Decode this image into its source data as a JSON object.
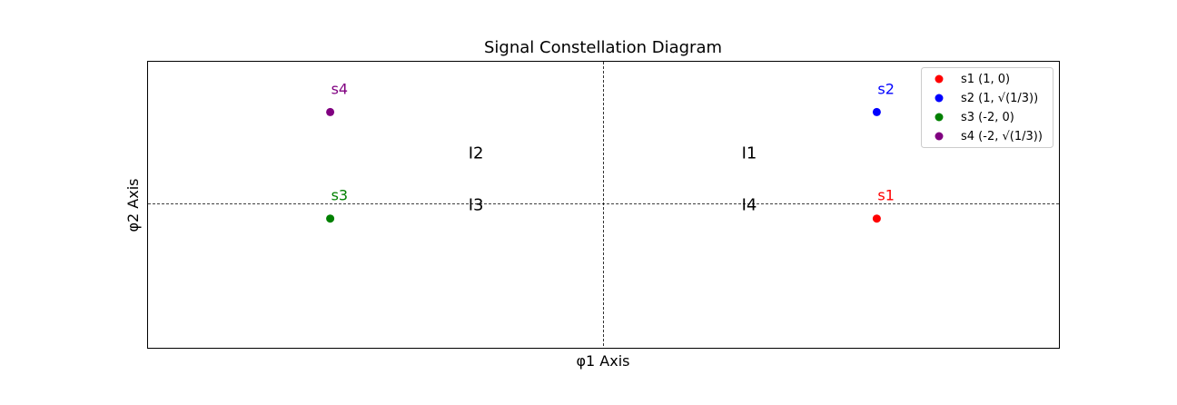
{
  "chart_data": {
    "type": "scatter",
    "title": "Signal Constellation Diagram",
    "xlabel": "φ1 Axis",
    "ylabel": "φ2 Axis",
    "xlim": [
      -3,
      2
    ],
    "ylim": [
      -0.7,
      0.85
    ],
    "grid": false,
    "axis_ticks": false,
    "reference_lines": {
      "x": -0.5,
      "y": 0.08
    },
    "legend_position": "top-right",
    "series": [
      {
        "name": "s1 (1, 0)",
        "label": "s1",
        "color": "#ff0000",
        "x": 1,
        "y": 0
      },
      {
        "name": "s2 (1, √(1/3))",
        "label": "s2",
        "color": "#0000ff",
        "x": 1,
        "y": 0.57735
      },
      {
        "name": "s3 (-2, 0)",
        "label": "s3",
        "color": "#008000",
        "x": -2,
        "y": 0
      },
      {
        "name": "s4 (-2, √(1/3))",
        "label": "s4",
        "color": "#800080",
        "x": -2,
        "y": 0.57735
      }
    ],
    "regions": [
      {
        "label": "I1",
        "x": 0.3,
        "y": 0.35
      },
      {
        "label": "I2",
        "x": -1.2,
        "y": 0.35
      },
      {
        "label": "I3",
        "x": -1.2,
        "y": 0.07
      },
      {
        "label": "I4",
        "x": 0.3,
        "y": 0.07
      }
    ]
  }
}
